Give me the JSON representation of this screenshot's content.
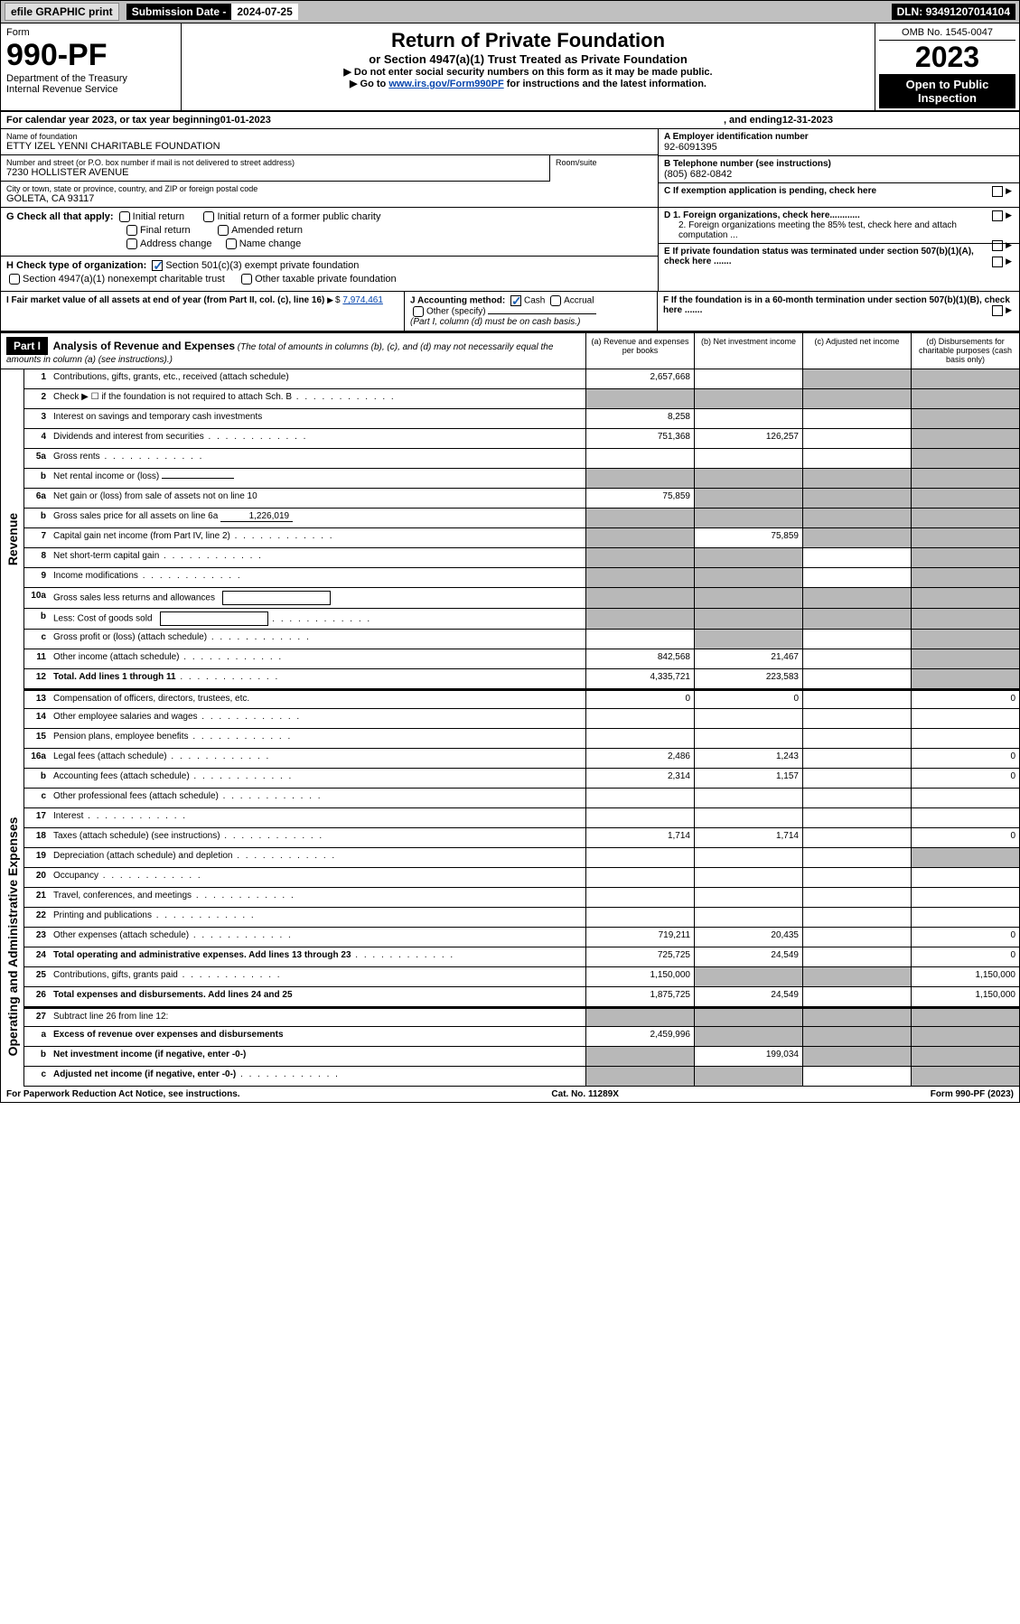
{
  "topbar": {
    "efile": "efile GRAPHIC print",
    "submission_label": "Submission Date - ",
    "submission_date": "2024-07-25",
    "dln_label": "DLN: ",
    "dln": "93491207014104"
  },
  "header": {
    "form_label": "Form",
    "form_number": "990-PF",
    "dept": "Department of the Treasury",
    "irs": "Internal Revenue Service",
    "title": "Return of Private Foundation",
    "subtitle": "or Section 4947(a)(1) Trust Treated as Private Foundation",
    "note1": "▶ Do not enter social security numbers on this form as it may be made public.",
    "note2_pre": "▶ Go to ",
    "note2_link": "www.irs.gov/Form990PF",
    "note2_post": " for instructions and the latest information.",
    "omb": "OMB No. 1545-0047",
    "year": "2023",
    "open": "Open to Public Inspection"
  },
  "calendar": {
    "text_pre": "For calendar year 2023, or tax year beginning ",
    "begin": "01-01-2023",
    "text_mid": " , and ending ",
    "end": "12-31-2023"
  },
  "foundation": {
    "name_label": "Name of foundation",
    "name": "ETTY IZEL YENNI CHARITABLE FOUNDATION",
    "addr_label": "Number and street (or P.O. box number if mail is not delivered to street address)",
    "addr": "7230 HOLLISTER AVENUE",
    "room_label": "Room/suite",
    "city_label": "City or town, state or province, country, and ZIP or foreign postal code",
    "city": "GOLETA, CA  93117"
  },
  "boxA_label": "A Employer identification number",
  "boxA_value": "92-6091395",
  "boxB_label": "B Telephone number (see instructions)",
  "boxB_value": "(805) 682-0842",
  "boxC_label": "C If exemption application is pending, check here",
  "boxD1": "D 1. Foreign organizations, check here............",
  "boxD2": "2. Foreign organizations meeting the 85% test, check here and attach computation ...",
  "boxE": "E  If private foundation status was terminated under section 507(b)(1)(A), check here .......",
  "boxF": "F  If the foundation is in a 60-month termination under section 507(b)(1)(B), check here .......",
  "G": {
    "label": "G Check all that apply:",
    "opts": [
      "Initial return",
      "Final return",
      "Address change",
      "Initial return of a former public charity",
      "Amended return",
      "Name change"
    ]
  },
  "H": {
    "label": "H Check type of organization:",
    "opt1": "Section 501(c)(3) exempt private foundation",
    "opt2": "Section 4947(a)(1) nonexempt charitable trust",
    "opt3": "Other taxable private foundation"
  },
  "I": {
    "label": "I Fair market value of all assets at end of year (from Part II, col. (c), line 16)",
    "value": "7,974,461"
  },
  "J": {
    "label": "J Accounting method:",
    "cash": "Cash",
    "accrual": "Accrual",
    "other": "Other (specify)",
    "note": "(Part I, column (d) must be on cash basis.)"
  },
  "part1": {
    "label": "Part I",
    "title": "Analysis of Revenue and Expenses",
    "title_note": " (The total of amounts in columns (b), (c), and (d) may not necessarily equal the amounts in column (a) (see instructions).)",
    "col_a": "(a) Revenue and expenses per books",
    "col_b": "(b) Net investment income",
    "col_c": "(c) Adjusted net income",
    "col_d": "(d) Disbursements for charitable purposes (cash basis only)"
  },
  "side_labels": {
    "revenue": "Revenue",
    "expenses": "Operating and Administrative Expenses"
  },
  "lines": [
    {
      "num": "1",
      "desc": "Contributions, gifts, grants, etc., received (attach schedule)",
      "a": "2,657,668",
      "b": "",
      "c": "grey",
      "d": "grey"
    },
    {
      "num": "2",
      "desc": "Check ▶ ☐ if the foundation is not required to attach Sch. B",
      "a": "grey",
      "b": "grey",
      "c": "grey",
      "d": "grey",
      "dots": true
    },
    {
      "num": "3",
      "desc": "Interest on savings and temporary cash investments",
      "a": "8,258",
      "b": "",
      "c": "",
      "d": "grey"
    },
    {
      "num": "4",
      "desc": "Dividends and interest from securities",
      "a": "751,368",
      "b": "126,257",
      "c": "",
      "d": "grey",
      "dots": true
    },
    {
      "num": "5a",
      "desc": "Gross rents",
      "a": "",
      "b": "",
      "c": "",
      "d": "grey",
      "dots": true
    },
    {
      "num": "b",
      "desc": "Net rental income or (loss)",
      "a": "grey",
      "b": "grey",
      "c": "grey",
      "d": "grey",
      "inline": ""
    },
    {
      "num": "6a",
      "desc": "Net gain or (loss) from sale of assets not on line 10",
      "a": "75,859",
      "b": "grey",
      "c": "grey",
      "d": "grey"
    },
    {
      "num": "b",
      "desc": "Gross sales price for all assets on line 6a",
      "a": "grey",
      "b": "grey",
      "c": "grey",
      "d": "grey",
      "inline": "1,226,019"
    },
    {
      "num": "7",
      "desc": "Capital gain net income (from Part IV, line 2)",
      "a": "grey",
      "b": "75,859",
      "c": "grey",
      "d": "grey",
      "dots": true
    },
    {
      "num": "8",
      "desc": "Net short-term capital gain",
      "a": "grey",
      "b": "grey",
      "c": "",
      "d": "grey",
      "dots": true
    },
    {
      "num": "9",
      "desc": "Income modifications",
      "a": "grey",
      "b": "grey",
      "c": "",
      "d": "grey",
      "dots": true
    },
    {
      "num": "10a",
      "desc": "Gross sales less returns and allowances",
      "a": "grey",
      "b": "grey",
      "c": "grey",
      "d": "grey",
      "box": true
    },
    {
      "num": "b",
      "desc": "Less: Cost of goods sold",
      "a": "grey",
      "b": "grey",
      "c": "grey",
      "d": "grey",
      "box": true,
      "dots": true
    },
    {
      "num": "c",
      "desc": "Gross profit or (loss) (attach schedule)",
      "a": "",
      "b": "grey",
      "c": "",
      "d": "grey",
      "dots": true
    },
    {
      "num": "11",
      "desc": "Other income (attach schedule)",
      "a": "842,568",
      "b": "21,467",
      "c": "",
      "d": "grey",
      "dots": true
    },
    {
      "num": "12",
      "desc": "Total. Add lines 1 through 11",
      "a": "4,335,721",
      "b": "223,583",
      "c": "",
      "d": "grey",
      "bold": true,
      "dots": true
    },
    {
      "num": "13",
      "desc": "Compensation of officers, directors, trustees, etc.",
      "a": "0",
      "b": "0",
      "c": "",
      "d": "0"
    },
    {
      "num": "14",
      "desc": "Other employee salaries and wages",
      "a": "",
      "b": "",
      "c": "",
      "d": "",
      "dots": true
    },
    {
      "num": "15",
      "desc": "Pension plans, employee benefits",
      "a": "",
      "b": "",
      "c": "",
      "d": "",
      "dots": true
    },
    {
      "num": "16a",
      "desc": "Legal fees (attach schedule)",
      "a": "2,486",
      "b": "1,243",
      "c": "",
      "d": "0",
      "dots": true
    },
    {
      "num": "b",
      "desc": "Accounting fees (attach schedule)",
      "a": "2,314",
      "b": "1,157",
      "c": "",
      "d": "0",
      "dots": true
    },
    {
      "num": "c",
      "desc": "Other professional fees (attach schedule)",
      "a": "",
      "b": "",
      "c": "",
      "d": "",
      "dots": true
    },
    {
      "num": "17",
      "desc": "Interest",
      "a": "",
      "b": "",
      "c": "",
      "d": "",
      "dots": true
    },
    {
      "num": "18",
      "desc": "Taxes (attach schedule) (see instructions)",
      "a": "1,714",
      "b": "1,714",
      "c": "",
      "d": "0",
      "dots": true
    },
    {
      "num": "19",
      "desc": "Depreciation (attach schedule) and depletion",
      "a": "",
      "b": "",
      "c": "",
      "d": "grey",
      "dots": true
    },
    {
      "num": "20",
      "desc": "Occupancy",
      "a": "",
      "b": "",
      "c": "",
      "d": "",
      "dots": true
    },
    {
      "num": "21",
      "desc": "Travel, conferences, and meetings",
      "a": "",
      "b": "",
      "c": "",
      "d": "",
      "dots": true
    },
    {
      "num": "22",
      "desc": "Printing and publications",
      "a": "",
      "b": "",
      "c": "",
      "d": "",
      "dots": true
    },
    {
      "num": "23",
      "desc": "Other expenses (attach schedule)",
      "a": "719,211",
      "b": "20,435",
      "c": "",
      "d": "0",
      "dots": true
    },
    {
      "num": "24",
      "desc": "Total operating and administrative expenses. Add lines 13 through 23",
      "a": "725,725",
      "b": "24,549",
      "c": "",
      "d": "0",
      "bold": true,
      "dots": true
    },
    {
      "num": "25",
      "desc": "Contributions, gifts, grants paid",
      "a": "1,150,000",
      "b": "grey",
      "c": "grey",
      "d": "1,150,000",
      "dots": true
    },
    {
      "num": "26",
      "desc": "Total expenses and disbursements. Add lines 24 and 25",
      "a": "1,875,725",
      "b": "24,549",
      "c": "",
      "d": "1,150,000",
      "bold": true
    },
    {
      "num": "27",
      "desc": "Subtract line 26 from line 12:",
      "a": "grey",
      "b": "grey",
      "c": "grey",
      "d": "grey"
    },
    {
      "num": "a",
      "desc": "Excess of revenue over expenses and disbursements",
      "a": "2,459,996",
      "b": "grey",
      "c": "grey",
      "d": "grey",
      "bold": true
    },
    {
      "num": "b",
      "desc": "Net investment income (if negative, enter -0-)",
      "a": "grey",
      "b": "199,034",
      "c": "grey",
      "d": "grey",
      "bold": true
    },
    {
      "num": "c",
      "desc": "Adjusted net income (if negative, enter -0-)",
      "a": "grey",
      "b": "grey",
      "c": "",
      "d": "grey",
      "bold": true,
      "dots": true
    }
  ],
  "footer": {
    "left": "For Paperwork Reduction Act Notice, see instructions.",
    "mid": "Cat. No. 11289X",
    "right": "Form 990-PF (2023)"
  },
  "colors": {
    "grey": "#b8b8b8",
    "link": "#0645ad",
    "check": "#1a5fb4"
  }
}
